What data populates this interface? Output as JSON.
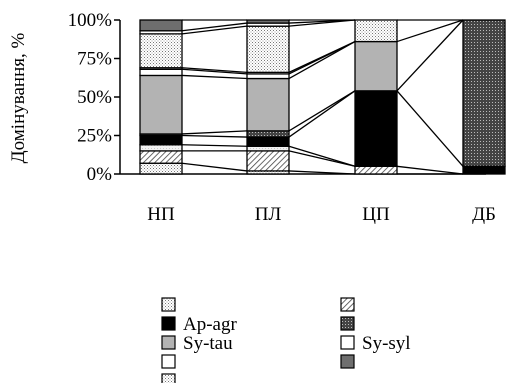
{
  "chart_data": {
    "type": "bar",
    "stacked": true,
    "ylabel": "Домінування, %",
    "ylim": [
      0,
      100
    ],
    "yticks": [
      "0%",
      "25%",
      "50%",
      "75%",
      "100%"
    ],
    "categories": [
      "НП",
      "ПЛ",
      "ЦП",
      "ДБ"
    ],
    "connector_lines": true,
    "series": [
      {
        "name": "",
        "fill": "dots",
        "values": [
          7,
          2,
          0,
          0
        ]
      },
      {
        "name": "",
        "fill": "hatch",
        "values": [
          8,
          13,
          5,
          0
        ]
      },
      {
        "name": "",
        "fill": "light",
        "values": [
          4,
          3,
          0,
          0
        ]
      },
      {
        "name": "Ap-agr",
        "fill": "black",
        "values": [
          6,
          6,
          49,
          5
        ]
      },
      {
        "name": "",
        "fill": "white",
        "values": [
          0,
          0,
          0,
          0
        ]
      },
      {
        "name": "",
        "fill": "grid",
        "values": [
          1,
          4,
          0,
          95
        ]
      },
      {
        "name": "Sy-tau",
        "fill": "gray",
        "values": [
          38,
          34,
          32,
          0
        ]
      },
      {
        "name": "Sy-syl",
        "fill": "white",
        "values": [
          4,
          3,
          0,
          0
        ]
      },
      {
        "name": "",
        "fill": "white",
        "values": [
          0,
          0,
          0,
          0
        ]
      },
      {
        "name": "",
        "fill": "white",
        "values": [
          1,
          1,
          0,
          0
        ]
      },
      {
        "name": "",
        "fill": "dots",
        "values": [
          22,
          30,
          14,
          0
        ]
      },
      {
        "name": "",
        "fill": "white",
        "values": [
          2,
          2,
          0,
          0
        ]
      },
      {
        "name": "",
        "fill": "darkgray",
        "values": [
          7,
          2,
          0,
          0
        ]
      }
    ],
    "legend": {
      "placement": "bottom",
      "entries": [
        {
          "label": "",
          "fill": "dots"
        },
        {
          "label": "",
          "fill": "hatch"
        },
        {
          "label": "Ap-agr",
          "fill": "black"
        },
        {
          "label": "",
          "fill": "grid"
        },
        {
          "label": "Sy-tau",
          "fill": "gray"
        },
        {
          "label": "Sy-syl",
          "fill": "white"
        },
        {
          "label": "",
          "fill": "white"
        },
        {
          "label": "",
          "fill": "darkgray"
        },
        {
          "label": "",
          "fill": "dots"
        }
      ]
    }
  }
}
